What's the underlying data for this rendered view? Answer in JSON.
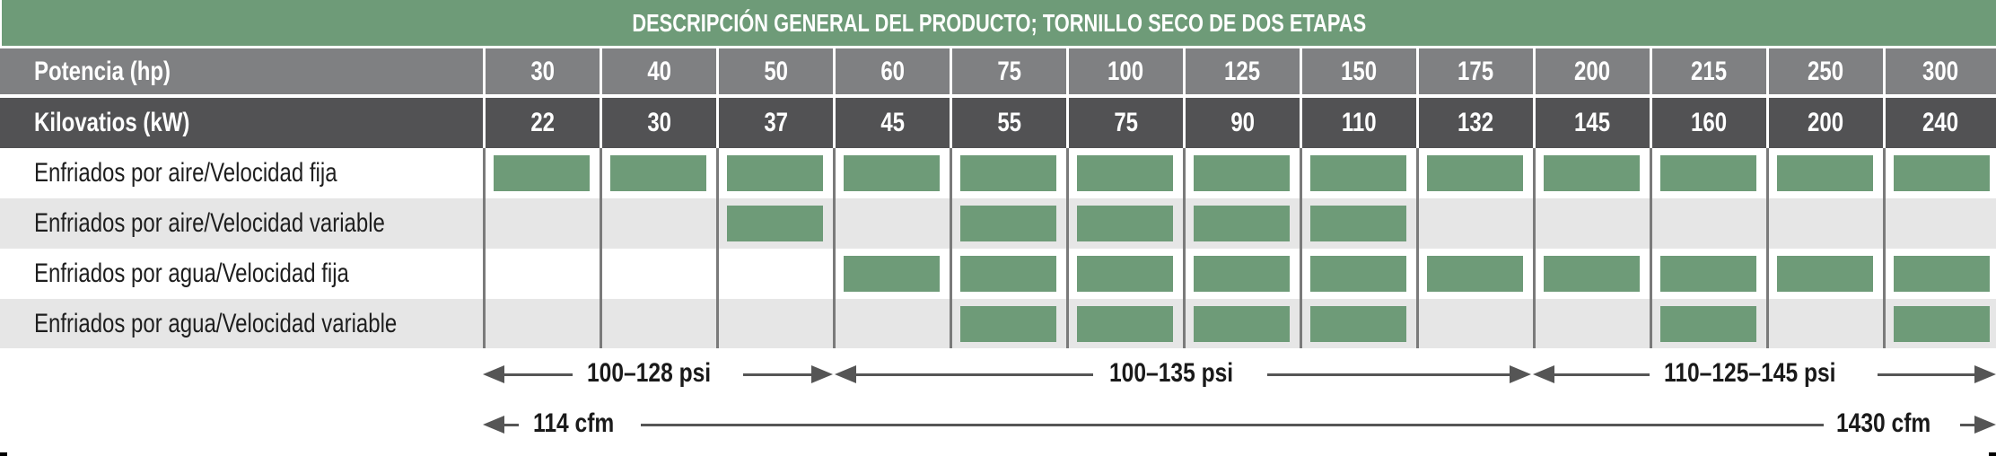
{
  "title": "DESCRIPCIÓN GENERAL DEL PRODUCTO; TORNILLO SECO DE DOS ETAPAS",
  "colors": {
    "accent_green": "#6e9b78",
    "hp_row": "#7f8082",
    "kw_row": "#525254",
    "shade_row": "#e6e6e6"
  },
  "header_rows": {
    "hp": {
      "label": "Potencia (hp)",
      "values": [
        "30",
        "40",
        "50",
        "60",
        "75",
        "100",
        "125",
        "150",
        "175",
        "200",
        "215",
        "250",
        "300"
      ]
    },
    "kw": {
      "label": "Kilovatios (kW)",
      "values": [
        "22",
        "30",
        "37",
        "45",
        "55",
        "75",
        "90",
        "110",
        "132",
        "145",
        "160",
        "200",
        "240"
      ]
    }
  },
  "rows": [
    {
      "label": "Enfriados por aire/Velocidad fija",
      "available": [
        1,
        1,
        1,
        1,
        1,
        1,
        1,
        1,
        1,
        1,
        1,
        1,
        1
      ]
    },
    {
      "label": "Enfriados por aire/Velocidad variable",
      "available": [
        0,
        0,
        1,
        0,
        1,
        1,
        1,
        1,
        0,
        0,
        0,
        0,
        0
      ]
    },
    {
      "label": "Enfriados por agua/Velocidad fija",
      "available": [
        0,
        0,
        0,
        1,
        1,
        1,
        1,
        1,
        1,
        1,
        1,
        1,
        1
      ]
    },
    {
      "label": "Enfriados por agua/Velocidad variable",
      "available": [
        0,
        0,
        0,
        0,
        1,
        1,
        1,
        1,
        0,
        0,
        1,
        0,
        1
      ]
    }
  ],
  "pressure_ranges": [
    {
      "label": "100–128 psi",
      "from_hp": "30",
      "to_hp": "50"
    },
    {
      "label": "100–135 psi",
      "from_hp": "60",
      "to_hp": "175"
    },
    {
      "label": "110–125–145 psi",
      "from_hp": "200",
      "to_hp": "300"
    }
  ],
  "flow_range": {
    "min_label": "114 cfm",
    "max_label": "1430 cfm"
  },
  "chart_data": {
    "type": "table",
    "title": "DESCRIPCIÓN GENERAL DEL PRODUCTO; TORNILLO SECO DE DOS ETAPAS",
    "columns_hp": [
      30,
      40,
      50,
      60,
      75,
      100,
      125,
      150,
      175,
      200,
      215,
      250,
      300
    ],
    "columns_kw": [
      22,
      30,
      37,
      45,
      55,
      75,
      90,
      110,
      132,
      145,
      160,
      200,
      240
    ],
    "series": [
      {
        "name": "Enfriados por aire/Velocidad fija",
        "values": [
          1,
          1,
          1,
          1,
          1,
          1,
          1,
          1,
          1,
          1,
          1,
          1,
          1
        ]
      },
      {
        "name": "Enfriados por aire/Velocidad variable",
        "values": [
          0,
          0,
          1,
          0,
          1,
          1,
          1,
          1,
          0,
          0,
          0,
          0,
          0
        ]
      },
      {
        "name": "Enfriados por agua/Velocidad fija",
        "values": [
          0,
          0,
          0,
          1,
          1,
          1,
          1,
          1,
          1,
          1,
          1,
          1,
          1
        ]
      },
      {
        "name": "Enfriados por agua/Velocidad variable",
        "values": [
          0,
          0,
          0,
          0,
          1,
          1,
          1,
          1,
          0,
          0,
          1,
          0,
          1
        ]
      }
    ],
    "annotations": [
      "100–128 psi (30–50 hp)",
      "100–135 psi (60–175 hp)",
      "110–125–145 psi (200–300 hp)",
      "114 cfm → 1430 cfm"
    ]
  }
}
